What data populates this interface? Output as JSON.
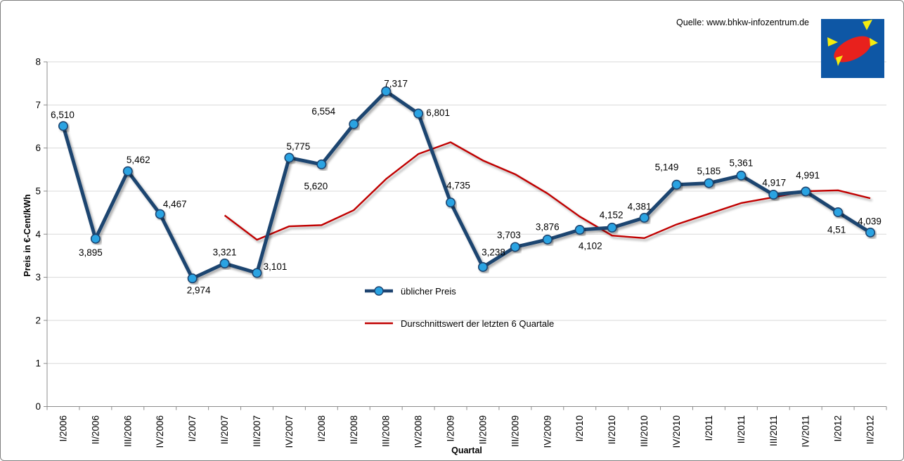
{
  "source": {
    "label": "Quelle: www.bhkw-infozentrum.de"
  },
  "logo": {
    "name": "bhkw-infozentrum-logo",
    "background": "#0E57A5",
    "ellipse": "#E8211D",
    "rays": "#F4EC0E"
  },
  "chart_data": {
    "type": "line",
    "title": "",
    "xlabel": "Quartal",
    "ylabel": "Preis in €-Cent/kWh",
    "ylim": [
      0,
      8
    ],
    "yticks": [
      0,
      1,
      2,
      3,
      4,
      5,
      6,
      7,
      8
    ],
    "grid": true,
    "legend_position": "inside-center",
    "axis_color": "#8c8c8c",
    "grid_color": "#d9d9d9",
    "categories": [
      "I/2006",
      "II/2006",
      "III/2006",
      "IV/2006",
      "I/2007",
      "II/2007",
      "III/2007",
      "IV/2007",
      "I/2008",
      "II/2008",
      "III/2008",
      "IV/2008",
      "I/2009",
      "II/2009",
      "III/2009",
      "IV/2009",
      "I/2010",
      "II/2010",
      "III/2010",
      "IV/2010",
      "I/2011",
      "II/2011",
      "III/2011",
      "IV/2011",
      "I/2012",
      "II/2012"
    ],
    "series": [
      {
        "name": "üblicher Preis",
        "type": "line-markers",
        "color": "#1E4470",
        "marker_fill": "#29A3E2",
        "start_index": 0,
        "values": [
          6.51,
          3.895,
          5.462,
          4.467,
          2.974,
          3.321,
          3.101,
          5.775,
          5.62,
          6.554,
          7.317,
          6.801,
          4.735,
          3.238,
          3.703,
          3.876,
          4.102,
          4.152,
          4.381,
          5.149,
          5.185,
          5.361,
          4.917,
          4.991,
          4.51,
          4.039
        ],
        "labels": [
          "6,510",
          "3,895",
          "5,462",
          "4,467",
          "2,974",
          "3,321",
          "3,101",
          "5,775",
          "5,620",
          "6,554",
          "7,317",
          "6,801",
          "4,735",
          "3,238",
          "3,703",
          "3,876",
          "4,102",
          "4,152",
          "4,381",
          "5,149",
          "5,185",
          "5,361",
          "4,917",
          "4,991",
          "4,51",
          "4,039"
        ],
        "label_offsets": [
          [
            -1,
            -16
          ],
          [
            -7,
            20
          ],
          [
            15,
            -16
          ],
          [
            21,
            -14
          ],
          [
            9,
            17
          ],
          [
            0,
            -16
          ],
          [
            26,
            -9
          ],
          [
            13,
            -16
          ],
          [
            -8,
            31
          ],
          [
            -43,
            -18
          ],
          [
            14,
            -11
          ],
          [
            28,
            -1
          ],
          [
            11,
            -24
          ],
          [
            15,
            -21
          ],
          [
            -9,
            -17
          ],
          [
            0,
            -18
          ],
          [
            15,
            23
          ],
          [
            -1,
            -18
          ],
          [
            -7,
            -16
          ],
          [
            -14,
            -25
          ],
          [
            0,
            -17
          ],
          [
            0,
            -18
          ],
          [
            1,
            -17
          ],
          [
            3,
            -23
          ],
          [
            -2,
            25
          ],
          [
            -1,
            -16
          ]
        ]
      },
      {
        "name": "Durschnittswert der letzten 6 Quartale",
        "type": "line",
        "color": "#C00000",
        "start_index": 5,
        "values": [
          4.438,
          3.87,
          4.183,
          4.21,
          4.558,
          5.281,
          5.861,
          6.134,
          5.711,
          5.391,
          4.945,
          4.409,
          3.968,
          3.909,
          4.227,
          4.474,
          4.722,
          4.858,
          4.997,
          5.019,
          4.834
        ]
      }
    ]
  }
}
